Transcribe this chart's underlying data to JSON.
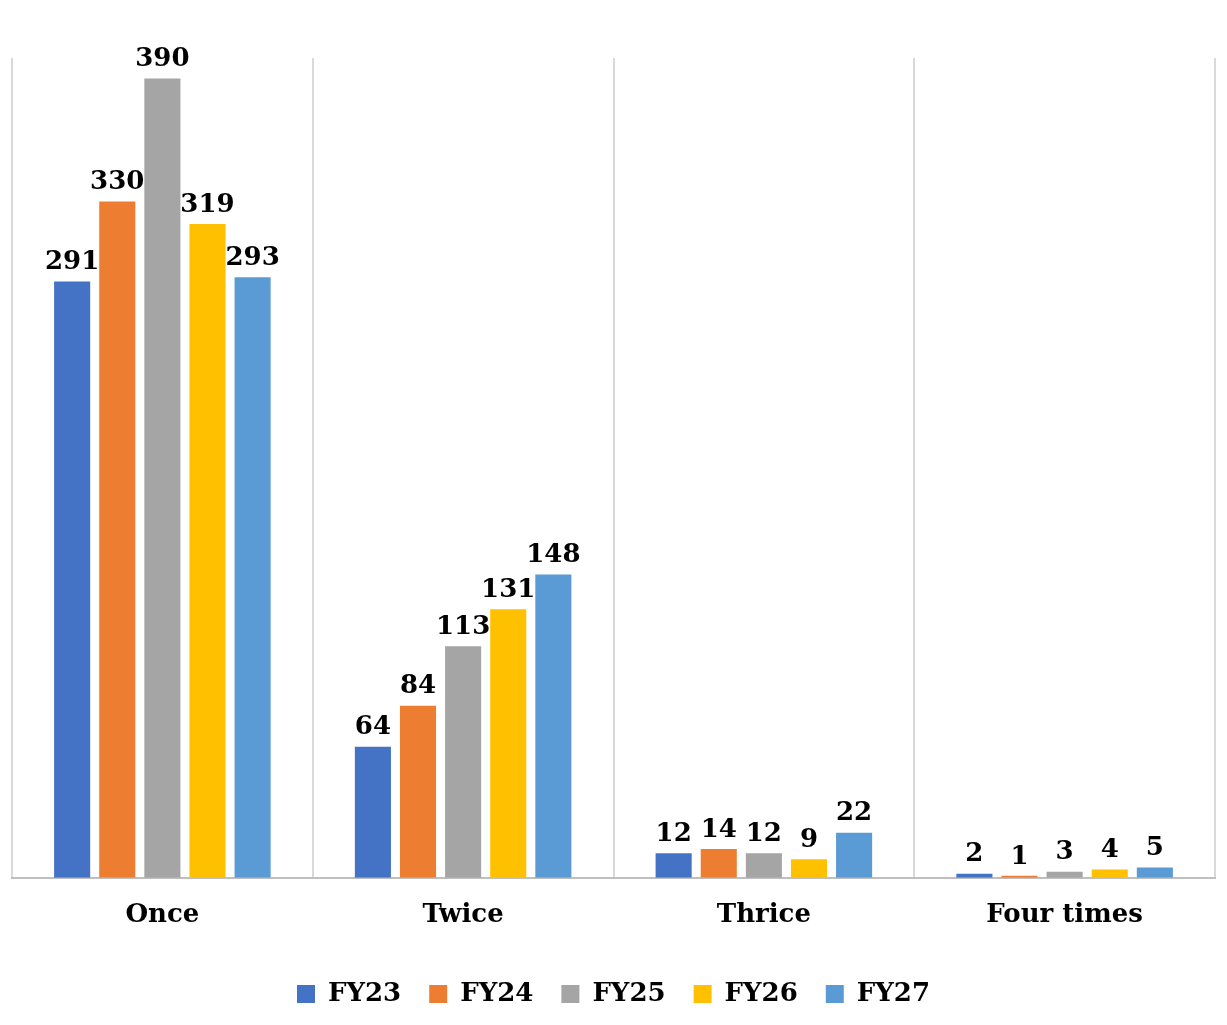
{
  "chart_data": {
    "type": "bar",
    "categories": [
      "Once",
      "Twice",
      "Thrice",
      "Four times"
    ],
    "series": [
      {
        "name": "FY23",
        "color": "#4472c4",
        "values": [
          291,
          64,
          12,
          2
        ]
      },
      {
        "name": "FY24",
        "color": "#ed7d31",
        "values": [
          330,
          84,
          14,
          1
        ]
      },
      {
        "name": "FY25",
        "color": "#a5a5a5",
        "values": [
          390,
          113,
          12,
          3
        ]
      },
      {
        "name": "FY26",
        "color": "#ffc000",
        "values": [
          319,
          131,
          9,
          4
        ]
      },
      {
        "name": "FY27",
        "color": "#5b9bd5",
        "values": [
          293,
          148,
          22,
          5
        ]
      }
    ],
    "data_labels": true,
    "grid": "x",
    "legend": "bottom"
  }
}
